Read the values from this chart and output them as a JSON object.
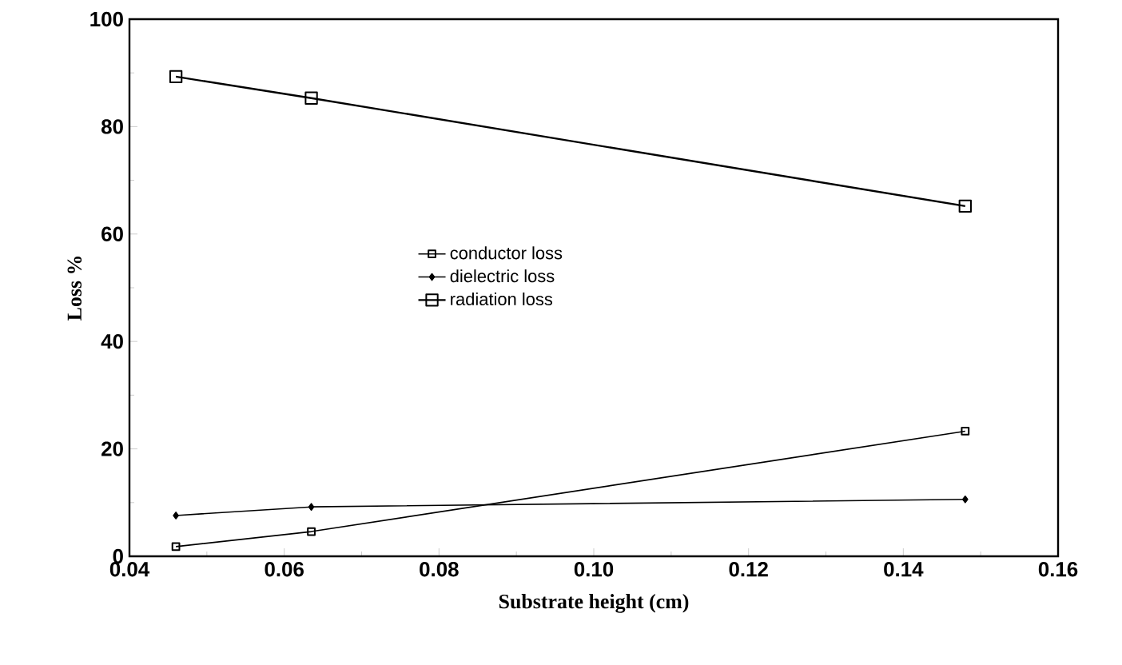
{
  "chart_data": {
    "type": "line",
    "xlabel": "Substrate height (cm)",
    "ylabel": "Loss %",
    "xlim": [
      0.04,
      0.16
    ],
    "xticks": [
      0.04,
      0.06,
      0.08,
      {
        "value": 0.1,
        "label": "0.10"
      },
      0.12,
      0.14,
      0.16
    ],
    "ylim": [
      0,
      100
    ],
    "yticks": [
      0,
      20,
      40,
      60,
      80,
      100
    ],
    "x": [
      0.046,
      0.0635,
      0.148
    ],
    "series": [
      {
        "name": "conductor loss",
        "color": "#000000",
        "marker": "square",
        "values": [
          1.8,
          4.6,
          23.3
        ]
      },
      {
        "name": "dielectric loss",
        "color": "#000000",
        "marker": "diamond",
        "values": [
          7.6,
          9.2,
          10.6
        ]
      },
      {
        "name": "radiation loss",
        "color": "#000000",
        "marker": "square",
        "values": [
          89.3,
          85.3,
          65.2
        ]
      }
    ],
    "legend": "center",
    "grid": false,
    "line_style": "solid"
  }
}
